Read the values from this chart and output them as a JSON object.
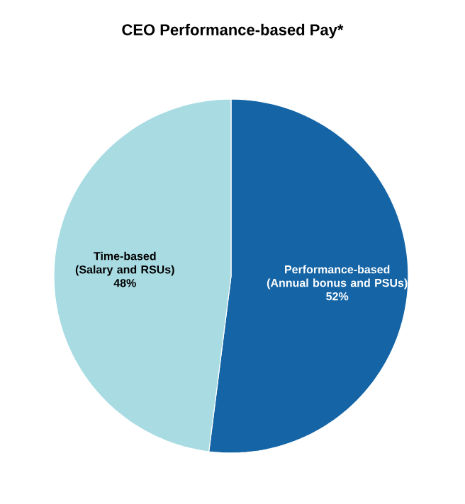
{
  "chart_data": {
    "type": "pie",
    "title": "CEO Performance-based Pay*",
    "categories": [
      "Performance-based (Annual bonus and PSUs)",
      "Time-based (Salary and RSUs)"
    ],
    "values": [
      52,
      48
    ],
    "value_labels": [
      "52%",
      "48%"
    ],
    "colors": [
      "#1565a6",
      "#a9dbe3"
    ]
  }
}
